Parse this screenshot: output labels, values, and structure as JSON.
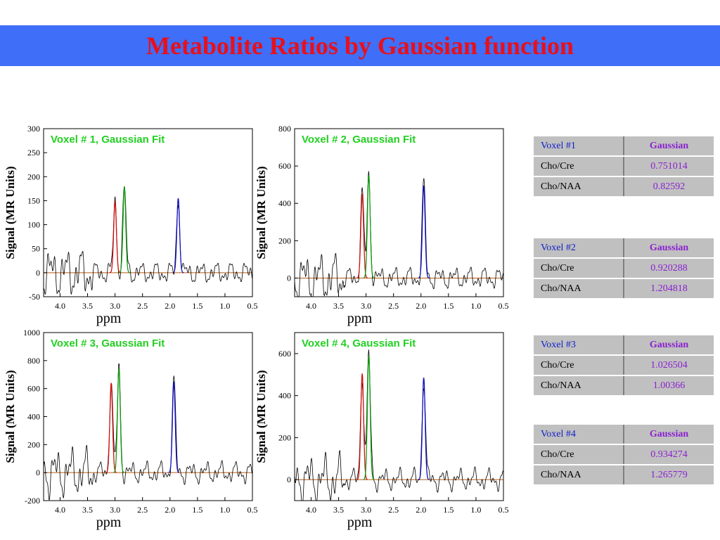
{
  "title": "Metabolite Ratios by Gaussian function",
  "colors": {
    "spectrum": "#000000",
    "red_peak": "#d01010",
    "green_peak": "#10a010",
    "blue_peak": "#1010c0",
    "baseline": "#b85a10"
  },
  "chart_data": [
    {
      "type": "line",
      "title": "Voxel # 1, Gaussian Fit",
      "xlabel": "ppm",
      "ylabel": "Signal (MR Units)",
      "xlim": [
        4.3,
        0.5
      ],
      "ylim": [
        -50,
        300
      ],
      "x_ticks": [
        "4.0",
        "3.5",
        "3.0",
        "2.5",
        "2.0",
        "1.5",
        "1.0",
        "0.5"
      ],
      "y_ticks": [
        "-50",
        "0",
        "50",
        "100",
        "150",
        "200",
        "250",
        "300"
      ],
      "peaks": [
        {
          "color": "red_peak",
          "center": 3.0,
          "height": 148
        },
        {
          "color": "green_peak",
          "center": 2.83,
          "height": 177
        },
        {
          "color": "blue_peak",
          "center": 1.85,
          "height": 155
        }
      ]
    },
    {
      "type": "line",
      "title": "Voxel # 2, Gaussian Fit",
      "xlabel": "ppm",
      "ylabel": "Signal (MR Units)",
      "xlim": [
        4.3,
        0.5
      ],
      "ylim": [
        -100,
        800
      ],
      "x_ticks": [
        "4.0",
        "3.5",
        "3.0",
        "2.5",
        "2.0",
        "1.5",
        "1.0",
        "0.5"
      ],
      "y_ticks": [
        "0",
        "200",
        "400",
        "600",
        "800"
      ],
      "peaks": [
        {
          "color": "red_peak",
          "center": 3.07,
          "height": 450
        },
        {
          "color": "green_peak",
          "center": 2.95,
          "height": 550
        },
        {
          "color": "blue_peak",
          "center": 1.95,
          "height": 495
        }
      ]
    },
    {
      "type": "line",
      "title": "Voxel # 3, Gaussian Fit",
      "xlabel": "ppm",
      "ylabel": "Signal (MR Units)",
      "xlim": [
        4.3,
        0.5
      ],
      "ylim": [
        -200,
        1000
      ],
      "x_ticks": [
        "4.0",
        "3.5",
        "3.0",
        "2.5",
        "2.0",
        "1.5",
        "1.0",
        "0.5"
      ],
      "y_ticks": [
        "-200",
        "0",
        "200",
        "400",
        "600",
        "800",
        "1000"
      ],
      "peaks": [
        {
          "color": "red_peak",
          "center": 3.07,
          "height": 640
        },
        {
          "color": "green_peak",
          "center": 2.93,
          "height": 740
        },
        {
          "color": "blue_peak",
          "center": 1.93,
          "height": 650
        }
      ]
    },
    {
      "type": "line",
      "title": "Voxel # 4, Gaussian Fit",
      "xlabel": "ppm",
      "ylabel": "Signal (MR Units)",
      "xlim": [
        4.3,
        0.5
      ],
      "ylim": [
        -100,
        700
      ],
      "x_ticks": [
        "4.0",
        "3.5",
        "3.0",
        "2.5",
        "2.0",
        "1.5",
        "1.0",
        "0.5"
      ],
      "y_ticks": [
        "0",
        "200",
        "400",
        "600"
      ],
      "peaks": [
        {
          "color": "red_peak",
          "center": 3.07,
          "height": 505
        },
        {
          "color": "green_peak",
          "center": 2.95,
          "height": 590
        },
        {
          "color": "blue_peak",
          "center": 1.95,
          "height": 485
        }
      ]
    }
  ],
  "tables": [
    {
      "header": [
        "Voxel #1",
        "Gaussian"
      ],
      "rows": [
        [
          "Cho/Cre",
          "0.751014"
        ],
        [
          "Cho/NAA",
          "0.82592"
        ]
      ]
    },
    {
      "header": [
        "Voxel #2",
        "Gaussian"
      ],
      "rows": [
        [
          "Cho/Cre",
          "0.920288"
        ],
        [
          "Cho/NAA",
          "1.204818"
        ]
      ]
    },
    {
      "header": [
        "Voxel #3",
        "Gaussian"
      ],
      "rows": [
        [
          "Cho/Cre",
          "1.026504"
        ],
        [
          "Cho/NAA",
          "1.00366"
        ]
      ]
    },
    {
      "header": [
        "Voxel #4",
        "Gaussian"
      ],
      "rows": [
        [
          "Cho/Cre",
          "0.934274"
        ],
        [
          "Cho/NAA",
          "1.265779"
        ]
      ]
    }
  ]
}
